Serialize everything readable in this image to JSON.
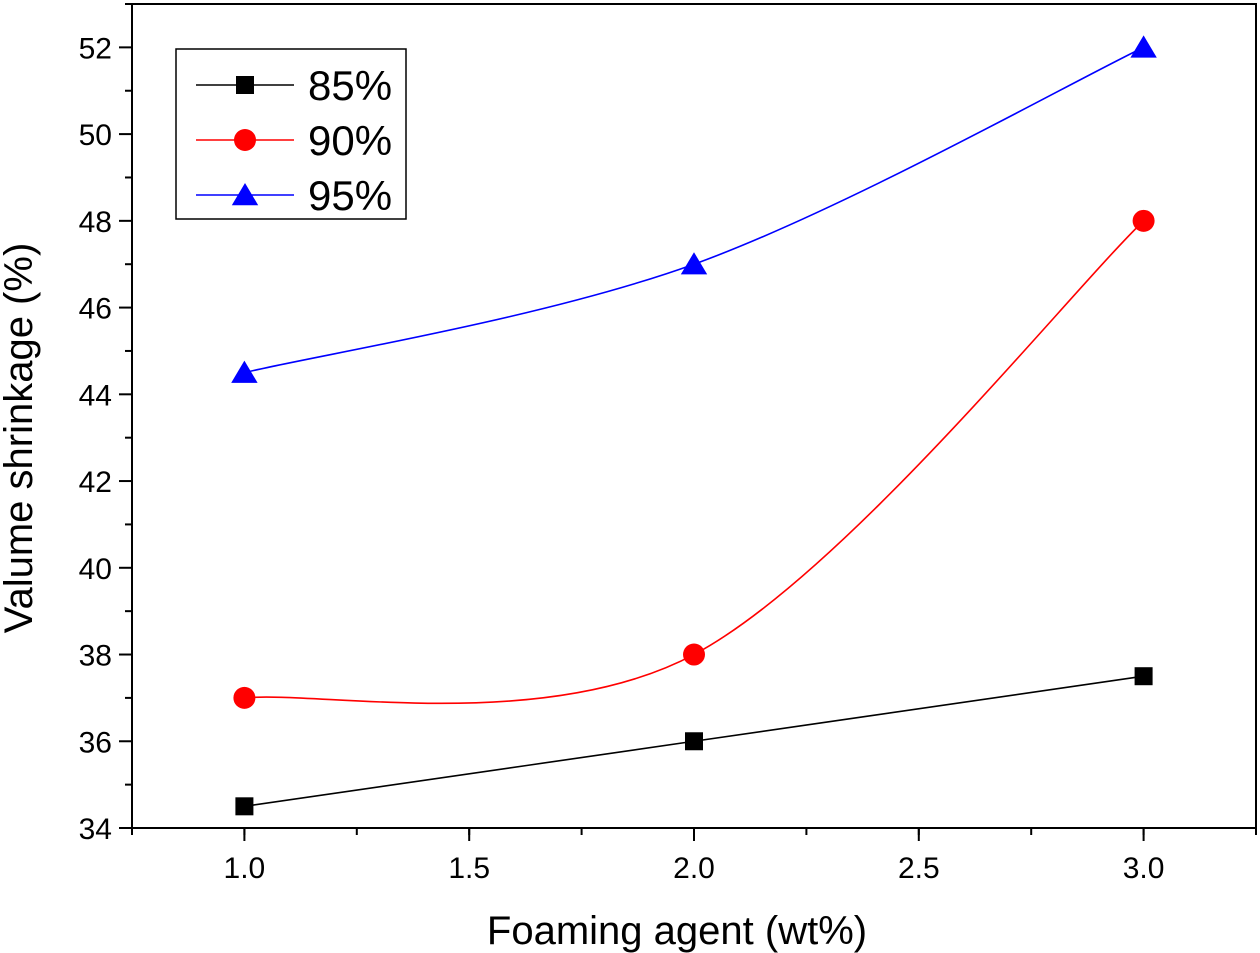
{
  "chart_data": {
    "type": "line",
    "title": "",
    "xlabel": "Foaming agent (wt%)",
    "ylabel": "Valume shrinkage (%)",
    "xlim": [
      0.75,
      3.25
    ],
    "ylim": [
      34,
      53
    ],
    "x_ticks": [
      1.0,
      1.5,
      2.0,
      2.5,
      3.0
    ],
    "x_tick_labels": [
      "1.0",
      "1.5",
      "2.0",
      "2.5",
      "3.0"
    ],
    "y_ticks": [
      34,
      36,
      38,
      40,
      42,
      44,
      46,
      48,
      50,
      52
    ],
    "y_tick_labels": [
      "34",
      "36",
      "38",
      "40",
      "42",
      "44",
      "46",
      "48",
      "50",
      "52"
    ],
    "grid": false,
    "legend_position": "top-left",
    "series": [
      {
        "name": "85%",
        "marker": "square",
        "color": "#000000",
        "x": [
          1.0,
          2.0,
          3.0
        ],
        "values": [
          34.5,
          36.0,
          37.5
        ]
      },
      {
        "name": "90%",
        "marker": "circle",
        "color": "#ff0000",
        "x": [
          1.0,
          2.0,
          3.0
        ],
        "values": [
          37.0,
          38.0,
          48.0
        ]
      },
      {
        "name": "95%",
        "marker": "triangle",
        "color": "#0000ff",
        "x": [
          1.0,
          2.0,
          3.0
        ],
        "values": [
          44.5,
          47.0,
          52.0
        ]
      }
    ]
  }
}
